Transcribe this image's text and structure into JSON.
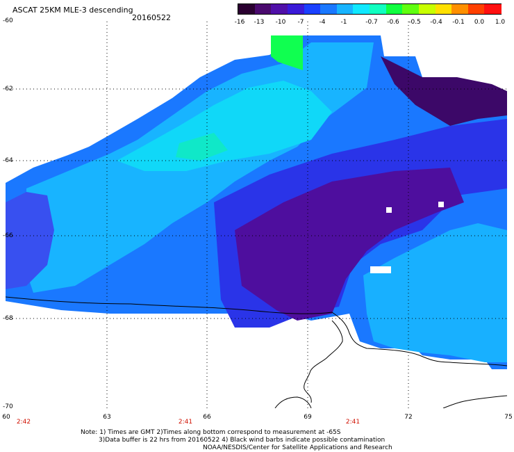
{
  "title": "ASCAT 25KM MLE-3 descending",
  "date": "20160522",
  "colorbar": {
    "labels": [
      "-16",
      "-13",
      "-10",
      "-7",
      "-4",
      "-1",
      "-0.7",
      "-0.6",
      "-0.5",
      "-0.4",
      "-0.1",
      "0.0",
      "1.0"
    ],
    "colors": [
      "#2a0030",
      "#4a0a6e",
      "#5010a8",
      "#3a1ad8",
      "#1a40ff",
      "#1a78ff",
      "#18b4ff",
      "#10e8ff",
      "#10ffc0",
      "#10ff40",
      "#60ff10",
      "#c8ff00",
      "#ffe000",
      "#ff9000",
      "#ff4000",
      "#ff1010"
    ]
  },
  "axes": {
    "lat_labels": [
      "-60",
      "-62",
      "-64",
      "-66",
      "-68",
      "-70"
    ],
    "lon_labels": [
      "60",
      "63",
      "66",
      "69",
      "72",
      "75"
    ]
  },
  "times": [
    "2:42",
    "2:41",
    "2:41"
  ],
  "note": {
    "line1": "Note: 1) Times are GMT 2)Times along bottom correspond to measurement at -65S",
    "line2": "3)Data buffer is 22 hrs from 20160522 4) Black wind barbs indicate possible contamination",
    "line3": "NOAA/NESDIS/Center for Satellite Applications and Research"
  },
  "map": {
    "region_colors": {
      "deep": "#4a0a6e",
      "purple": "#5a14b0",
      "blue": "#2a2ae8",
      "mid": "#1a6cff",
      "cyan": "#18b8ff",
      "aqua": "#10e0f0",
      "green": "#10ff60",
      "coast": "#000000",
      "grid": "#000000"
    }
  }
}
